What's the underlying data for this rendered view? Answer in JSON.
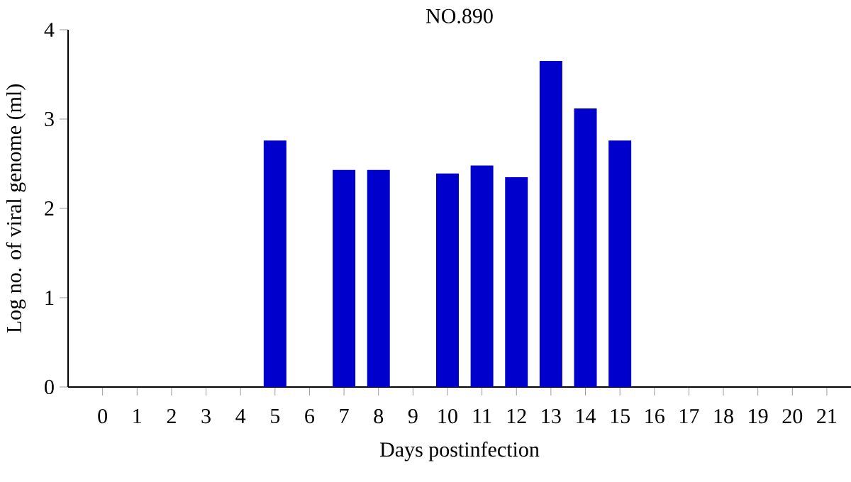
{
  "chart_data": {
    "type": "bar",
    "title": "NO.890",
    "xlabel": "Days postinfection",
    "ylabel": "Log no. of viral genome (ml)",
    "categories": [
      "0",
      "1",
      "2",
      "3",
      "4",
      "5",
      "6",
      "7",
      "8",
      "9",
      "10",
      "11",
      "12",
      "13",
      "14",
      "15",
      "16",
      "17",
      "18",
      "19",
      "20",
      "21"
    ],
    "values": [
      0,
      0,
      0,
      0,
      0,
      2.76,
      0,
      2.43,
      2.43,
      0,
      2.39,
      2.48,
      2.35,
      3.65,
      3.12,
      2.76,
      0,
      0,
      0,
      0,
      0,
      0
    ],
    "color": "#0000cc",
    "ylim": [
      0,
      4
    ],
    "yticks": [
      0,
      1,
      2,
      3,
      4
    ],
    "grid": false
  }
}
